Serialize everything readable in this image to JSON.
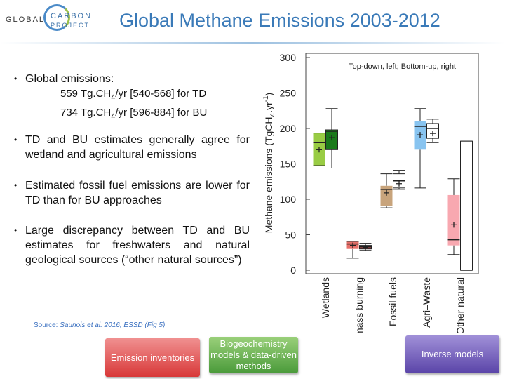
{
  "header": {
    "logo": [
      "GLOBAL",
      "CARBON",
      "PROJECT"
    ],
    "title": "Global Methane Emissions 2003-2012"
  },
  "bullets": [
    {
      "text": "Global emissions:",
      "lines": [
        [
          "559 Tg.CH",
          "4",
          "/yr [540-568] for TD"
        ],
        [
          "734 Tg.CH",
          "4",
          "/yr [596-884] for BU"
        ]
      ]
    },
    {
      "text": "TD and BU estimates generally agree for wetland and agricultural emissions"
    },
    {
      "text": "Estimated fossil fuel emissions are lower for TD than for BU approaches"
    },
    {
      "text": "Large discrepancy between TD and BU estimates for freshwaters and natural geological sources (“other natural sources”)"
    }
  ],
  "source": {
    "prefix": "Source: ",
    "ref": "Saunois et al. 2016, ESSD (Fig 5)"
  },
  "buttons": [
    "Emission inventories",
    "Biogeochemistry models & data-driven methods",
    "Inverse models"
  ],
  "chart_data": {
    "type": "box",
    "annotation": "Top-down, left; Bottom-up, right",
    "ylabel": [
      "Methane emissions (TgCH",
      "4",
      ".yr",
      "-1",
      ")"
    ],
    "categories": [
      "Wetlands",
      "Biomass burning",
      "Fossil fuels",
      "Agri–Waste",
      "Other natural"
    ],
    "ylim": [
      0,
      300
    ],
    "yticks": [
      0,
      50,
      100,
      150,
      200,
      250,
      300
    ],
    "series": [
      {
        "colors": [
          "#99cc44",
          "#e8706a",
          "#c8a47c",
          "#88c4f0",
          "#f8a8b0"
        ],
        "min": [
          148,
          17,
          88,
          116,
          22
        ],
        "q1": [
          148,
          30,
          91,
          170,
          35
        ],
        "median": [
          180,
          37,
          114,
          203,
          43
        ],
        "q3": [
          193,
          40,
          119,
          210,
          106
        ],
        "max": [
          193,
          40,
          136,
          228,
          129
        ],
        "mean": [
          170,
          35,
          109,
          191,
          64
        ]
      },
      {
        "colors": [
          "#1a7a1a",
          "#b04848",
          "#ffffff",
          "#ffffff",
          "#ffffff"
        ],
        "min": [
          144,
          28,
          114,
          180,
          0
        ],
        "q1": [
          170,
          30,
          116,
          186,
          0
        ],
        "median": [
          196,
          33,
          126,
          200,
          0
        ],
        "q3": [
          198,
          35,
          136,
          207,
          182
        ],
        "max": [
          228,
          38,
          141,
          213,
          182
        ],
        "mean": [
          187,
          32,
          122,
          193,
          null
        ]
      }
    ]
  }
}
